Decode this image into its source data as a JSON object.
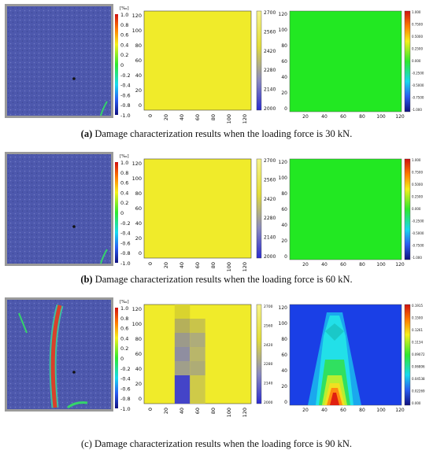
{
  "figure": {
    "rows": [
      {
        "id": "a",
        "caption_label": "(a)",
        "caption_text": "Damage characterization results when the loading force is 30 kN.",
        "photo_scale": {
          "unit": "[‰]",
          "ticks": [
            "1.0",
            "0.8",
            "0.6",
            "0.4",
            "0.2",
            "0",
            "-0.2",
            "-0.4",
            "-0.6",
            "-0.8",
            "-1.0"
          ]
        },
        "grid_map": {
          "x_ticks": [
            "0",
            "20",
            "40",
            "60",
            "80",
            "100",
            "120"
          ],
          "y_ticks": [
            "120",
            "100",
            "80",
            "60",
            "40",
            "20",
            "0"
          ],
          "colorbar_ticks": [
            "2700",
            "2560",
            "2420",
            "2280",
            "2140",
            "2000"
          ]
        },
        "contour": {
          "x_ticks": [
            "20",
            "40",
            "60",
            "80",
            "100",
            "120"
          ],
          "y_ticks": [
            "120",
            "100",
            "80",
            "60",
            "40",
            "20",
            "0"
          ],
          "colorbar_ticks": [
            "1.000",
            "0.7500",
            "0.5000",
            "0.2500",
            "0.000",
            "-0.2500",
            "-0.5000",
            "-0.7500",
            "-1.000"
          ]
        }
      },
      {
        "id": "b",
        "caption_label": "(b)",
        "caption_text": "Damage characterization results when the loading force is 60 kN.",
        "photo_scale": {
          "unit": "[‰]",
          "ticks": [
            "1.0",
            "0.8",
            "0.6",
            "0.4",
            "0.2",
            "0",
            "-0.2",
            "-0.4",
            "-0.6",
            "-0.8",
            "-1.0"
          ]
        },
        "grid_map": {
          "x_ticks": [
            "0",
            "20",
            "40",
            "60",
            "80",
            "100",
            "120"
          ],
          "y_ticks": [
            "120",
            "100",
            "80",
            "60",
            "40",
            "20",
            "0"
          ],
          "colorbar_ticks": [
            "2700",
            "2560",
            "2420",
            "2280",
            "2140",
            "2000"
          ]
        },
        "contour": {
          "x_ticks": [
            "20",
            "40",
            "60",
            "80",
            "100",
            "120"
          ],
          "y_ticks": [
            "120",
            "100",
            "80",
            "60",
            "40",
            "20",
            "0"
          ],
          "colorbar_ticks": [
            "1.000",
            "0.7500",
            "0.5000",
            "0.2500",
            "0.000",
            "-0.2500",
            "-0.5000",
            "-0.7500",
            "-1.000"
          ]
        }
      },
      {
        "id": "c",
        "caption_label": "(c)",
        "caption_text": "Damage characterization results when the loading force is 90 kN.",
        "photo_scale": {
          "unit": "[‰]",
          "ticks": [
            "1.0",
            "0.8",
            "0.6",
            "0.4",
            "0.2",
            "0",
            "-0.2",
            "-0.4",
            "-0.6",
            "-0.8",
            "-1.0"
          ]
        },
        "grid_map": {
          "x_ticks": [
            "0",
            "20",
            "40",
            "60",
            "80",
            "100",
            "120"
          ],
          "y_ticks": [
            "120",
            "100",
            "80",
            "60",
            "40",
            "20",
            "0"
          ],
          "colorbar_ticks": [
            "2700",
            "2560",
            "2420",
            "2280",
            "2140",
            "2000"
          ]
        },
        "contour": {
          "x_ticks": [
            "20",
            "40",
            "60",
            "80",
            "100",
            "120"
          ],
          "y_ticks": [
            "120",
            "100",
            "80",
            "60",
            "40",
            "20",
            "0"
          ],
          "colorbar_ticks": [
            "0.1915",
            "0.1500",
            "0.1261",
            "0.1134",
            "0.09072",
            "0.06806",
            "0.04538",
            "0.02269",
            "0.000"
          ]
        }
      }
    ],
    "colors": {
      "photo_blue": "#4a56a8",
      "grid_yellow": "#f0eb2a",
      "contour_green": "#22e822",
      "crack_red": "#d8402a"
    }
  }
}
